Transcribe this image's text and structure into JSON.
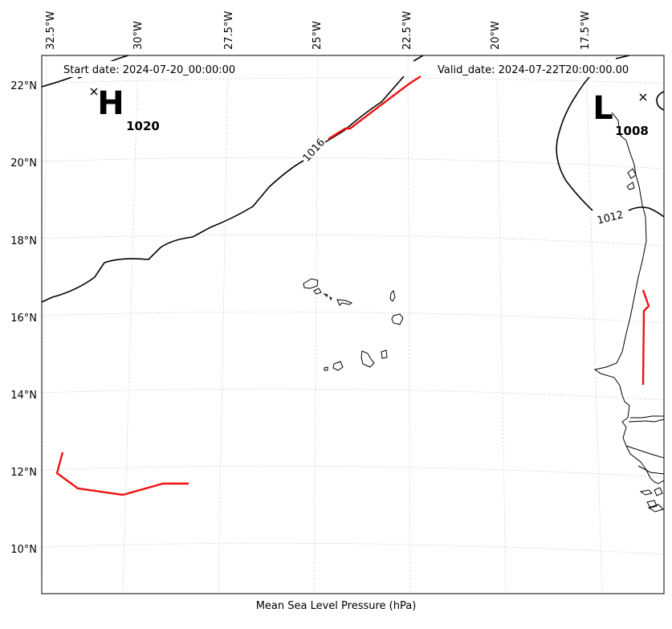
{
  "header": {
    "start_date": "Start date: 2024-07-20_00:00:00",
    "valid_date": "Valid_date: 2024-07-22T20:00:00.00"
  },
  "footer": {
    "xlabel": "Mean Sea Level Pressure (hPa)"
  },
  "longitude_labels": [
    "32.5°W",
    "30°W",
    "27.5°W",
    "25°W",
    "22.5°W",
    "20°W",
    "17.5°W"
  ],
  "latitude_labels": [
    "22°N",
    "20°N",
    "18°N",
    "16°N",
    "14°N",
    "12°N",
    "10°N"
  ],
  "pressure_centers": {
    "high": {
      "letter": "H",
      "value": "1020"
    },
    "low": {
      "letter": "L",
      "value": "1008"
    }
  },
  "isobar_labels": [
    "1016",
    "1012"
  ],
  "colors": {
    "isobar": "#000000",
    "front": "#ee1111",
    "grid": "#cccccc",
    "coast": "#000000"
  }
}
